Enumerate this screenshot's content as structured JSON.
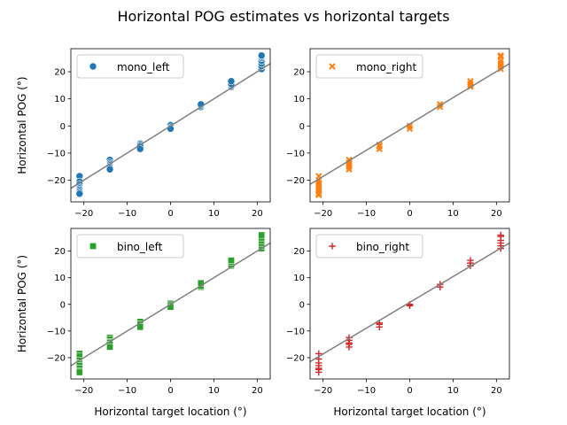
{
  "figure": {
    "title": "Horizontal POG estimates vs horizontal targets"
  },
  "chart_data": [
    {
      "type": "scatter",
      "panel": "top-left",
      "xlabel": "",
      "ylabel": "Horizontal POG (°)",
      "xlim": [
        -23,
        23
      ],
      "ylim": [
        -28,
        28.5
      ],
      "xticks": [
        -20,
        -10,
        0,
        10,
        20
      ],
      "yticks": [
        -20,
        -10,
        0,
        10,
        20
      ],
      "legend": {
        "label": "mono_left",
        "marker": "circle",
        "color": "#1f77b4",
        "position": "top-left"
      },
      "fit_line": {
        "x": [
          -23,
          23
        ],
        "y": [
          -23,
          23
        ],
        "color": "#808080"
      },
      "x": [
        -21,
        -21,
        -21,
        -21,
        -21,
        -21,
        -21,
        -21,
        -21,
        -14,
        -14,
        -14,
        -14,
        -14,
        -14,
        -14,
        -7,
        -7,
        -7,
        -7,
        0,
        0,
        0,
        7,
        7,
        7,
        14,
        14,
        14,
        14,
        21,
        21,
        21,
        21,
        21,
        21,
        21
      ],
      "y": [
        -18.5,
        -20.5,
        -21.5,
        -22.5,
        -23,
        -23.5,
        -24,
        -24.5,
        -25,
        -12.5,
        -13.5,
        -14,
        -14.5,
        -15,
        -15.5,
        -16,
        -6.5,
        -7,
        -7.5,
        -8.5,
        0.3,
        -0.5,
        -1,
        7,
        7.5,
        8,
        14.5,
        15,
        15.5,
        16.5,
        21,
        22,
        23,
        24,
        25,
        25.5,
        26
      ]
    },
    {
      "type": "scatter",
      "panel": "top-right",
      "xlabel": "",
      "ylabel": "",
      "xlim": [
        -23,
        23
      ],
      "ylim": [
        -28,
        28.5
      ],
      "xticks": [
        -20,
        -10,
        0,
        10,
        20
      ],
      "yticks": [
        -20,
        -10,
        0,
        10,
        20
      ],
      "legend": {
        "label": "mono_right",
        "marker": "x",
        "color": "#ff7f0e",
        "position": "top-left"
      },
      "fit_line": {
        "x": [
          -23,
          23
        ],
        "y": [
          -21.5,
          23
        ],
        "color": "#808080"
      },
      "x": [
        -21,
        -21,
        -21,
        -21,
        -21,
        -21,
        -21,
        -21,
        -14,
        -14,
        -14,
        -14,
        -14,
        -14,
        -7,
        -7,
        -7,
        0,
        0,
        7,
        7,
        14,
        14,
        14,
        14,
        21,
        21,
        21,
        21,
        21,
        21
      ],
      "y": [
        -18.5,
        -20,
        -21,
        -22,
        -23,
        -24,
        -25,
        -25.5,
        -12.5,
        -13.5,
        -14,
        -14.5,
        -15,
        -16,
        -7,
        -7.5,
        -8.5,
        0,
        -1,
        7,
        8,
        14.5,
        15,
        15.5,
        16.5,
        21,
        22,
        23,
        24,
        25.5,
        26
      ]
    },
    {
      "type": "scatter",
      "panel": "bottom-left",
      "xlabel": "Horizontal target location (°)",
      "ylabel": "Horizontal POG (°)",
      "xlim": [
        -23,
        23
      ],
      "ylim": [
        -28,
        28.5
      ],
      "xticks": [
        -20,
        -10,
        0,
        10,
        20
      ],
      "yticks": [
        -20,
        -10,
        0,
        10,
        20
      ],
      "legend": {
        "label": "bino_left",
        "marker": "square",
        "color": "#2ca02c",
        "position": "top-left"
      },
      "fit_line": {
        "x": [
          -23,
          23
        ],
        "y": [
          -23,
          23
        ],
        "color": "#808080"
      },
      "x": [
        -21,
        -21,
        -21,
        -21,
        -21,
        -21,
        -21,
        -21,
        -21,
        -14,
        -14,
        -14,
        -14,
        -14,
        -14,
        -7,
        -7,
        -7,
        0,
        0,
        0,
        7,
        7,
        7,
        14,
        14,
        14,
        14,
        21,
        21,
        21,
        21,
        21,
        21
      ],
      "y": [
        -18.5,
        -19.5,
        -21,
        -22,
        -22.5,
        -23,
        -24,
        -25,
        -25.5,
        -12.5,
        -13,
        -14,
        -14.5,
        -15,
        -16,
        -6.5,
        -7.5,
        -8.5,
        0.3,
        -0.3,
        -1,
        6.5,
        7,
        8,
        14.5,
        15,
        16,
        16.5,
        21,
        22,
        23,
        24,
        25,
        26
      ]
    },
    {
      "type": "scatter",
      "panel": "bottom-right",
      "xlabel": "Horizontal target location (°)",
      "ylabel": "",
      "xlim": [
        -23,
        23
      ],
      "ylim": [
        -28,
        28.5
      ],
      "xticks": [
        -20,
        -10,
        0,
        10,
        20
      ],
      "yticks": [
        -20,
        -10,
        0,
        10,
        20
      ],
      "legend": {
        "label": "bino_right",
        "marker": "plus",
        "color": "#d62728",
        "position": "top-left"
      },
      "fit_line": {
        "x": [
          -23,
          23
        ],
        "y": [
          -21.5,
          23
        ],
        "color": "#808080"
      },
      "x": [
        -21,
        -21,
        -21,
        -21,
        -21,
        -21,
        -21,
        -14,
        -14,
        -14,
        -14,
        -14,
        -7,
        -7,
        -7,
        0,
        0,
        7,
        7,
        14,
        14,
        14,
        21,
        21,
        21,
        21,
        21,
        21
      ],
      "y": [
        -18.5,
        -20.5,
        -22,
        -23,
        -24,
        -24.5,
        -25.5,
        -12.5,
        -13.5,
        -14.5,
        -15,
        -16,
        -7,
        -7.5,
        -8.5,
        0,
        -0.5,
        6.5,
        7.5,
        14.5,
        15.5,
        16.5,
        21,
        22,
        23,
        24,
        25.5,
        26
      ]
    }
  ]
}
